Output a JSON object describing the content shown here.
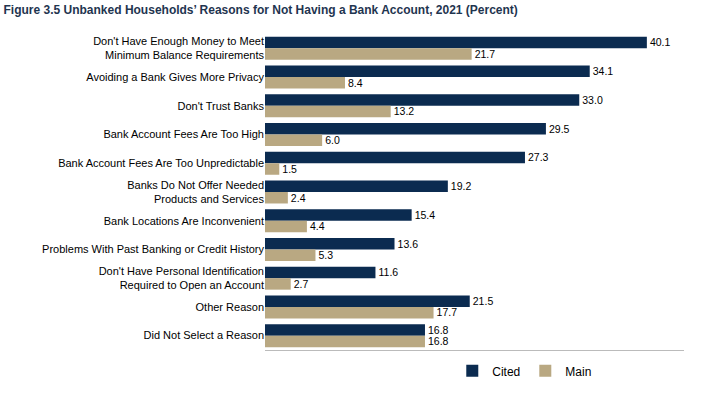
{
  "chart_data": {
    "type": "bar",
    "title": "Figure 3.5 Unbanked Households’ Reasons for Not Having a Bank Account, 2021 (Percent)",
    "orientation": "horizontal",
    "categories": [
      "Don't Have Enough Money to Meet\nMinimum Balance Requirements",
      "Avoiding a Bank Gives More Privacy",
      "Don't Trust Banks",
      "Bank Account Fees Are Too High",
      "Bank Account Fees Are Too Unpredictable",
      "Banks Do Not Offer Needed\nProducts and Services",
      "Bank Locations Are Inconvenient",
      "Problems With Past Banking or Credit History",
      "Don't Have Personal Identification\nRequired to Open an Account",
      "Other Reason",
      "Did Not Select a Reason"
    ],
    "series": [
      {
        "name": "Cited",
        "color": "#0b2b50",
        "values": [
          40.1,
          34.1,
          33.0,
          29.5,
          27.3,
          19.2,
          15.4,
          13.6,
          11.6,
          21.5,
          16.8
        ],
        "value_labels": [
          "40.1",
          "34.1",
          "33.0",
          "29.5",
          "27.3",
          "19.2",
          "15.4",
          "13.6",
          "11.6",
          "21.5",
          "16.8"
        ]
      },
      {
        "name": "Main",
        "color": "#b9a882",
        "values": [
          21.7,
          8.4,
          13.2,
          6.0,
          1.5,
          2.4,
          4.4,
          5.3,
          2.7,
          17.7,
          16.8
        ],
        "value_labels": [
          "21.7",
          "8.4",
          "13.2",
          "6.0",
          "1.5",
          "2.4",
          "4.4",
          "5.3",
          "2.7",
          "17.7",
          "16.8"
        ]
      }
    ],
    "xlim": [
      0,
      44
    ],
    "grid": false,
    "data_labels": true,
    "tick_labels": "y",
    "legend": "bottom"
  }
}
